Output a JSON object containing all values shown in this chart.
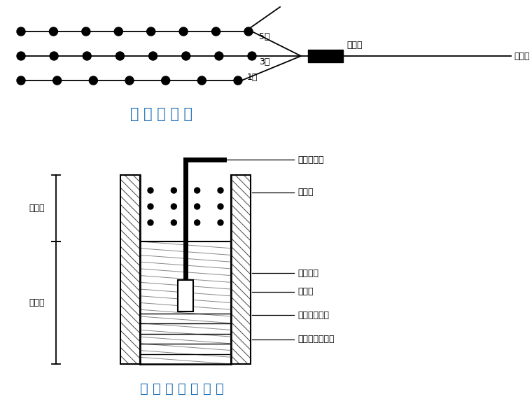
{
  "title1": "起 爆 网 络 图",
  "title2": "炮 孔 装 药 结 构 图",
  "bg_color": "#ffffff",
  "line_color": "#000000",
  "label_5duan": "5段",
  "label_3duan": "3段",
  "label_1duan": "1段",
  "label_huoleiguan": "火雷管",
  "label_daohuxian": "导火线",
  "label_daobao": "导爆管尾线",
  "label_dusai": "堵塞物",
  "label_xiaonang": "硝胺炸药",
  "label_qibao": "起爆体",
  "label_feidianlei": "非电毫秒雷管",
  "label_ruhua": "乳化或硝胺炸药",
  "label_dusaiduan": "堵塞段",
  "label_zhuangyao": "装药段",
  "title_color": "#1a6cb5"
}
